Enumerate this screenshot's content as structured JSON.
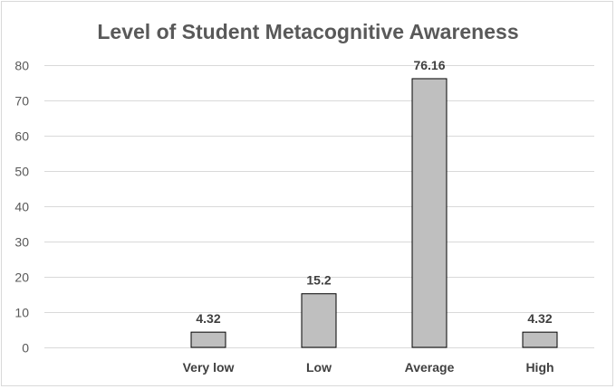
{
  "chart_data": {
    "type": "bar",
    "title": "Level of Student Metacognitive Awareness",
    "xlabel": "",
    "ylabel": "",
    "categories": [
      "Very low",
      "Low",
      "Average",
      "High"
    ],
    "values": [
      4.32,
      15.2,
      76.16,
      4.32
    ],
    "data_labels": [
      "4.32",
      "15.2",
      "76.16",
      "4.32"
    ],
    "y_ticks": [
      0,
      10,
      20,
      30,
      40,
      50,
      60,
      70,
      80
    ],
    "ylim": [
      0,
      80
    ],
    "grid": true,
    "legend": "none",
    "colors": {
      "bar_fill": "#bfbfbf",
      "bar_stroke": "#000000",
      "gridline": "#d9d9d9",
      "title": "#595959"
    }
  }
}
